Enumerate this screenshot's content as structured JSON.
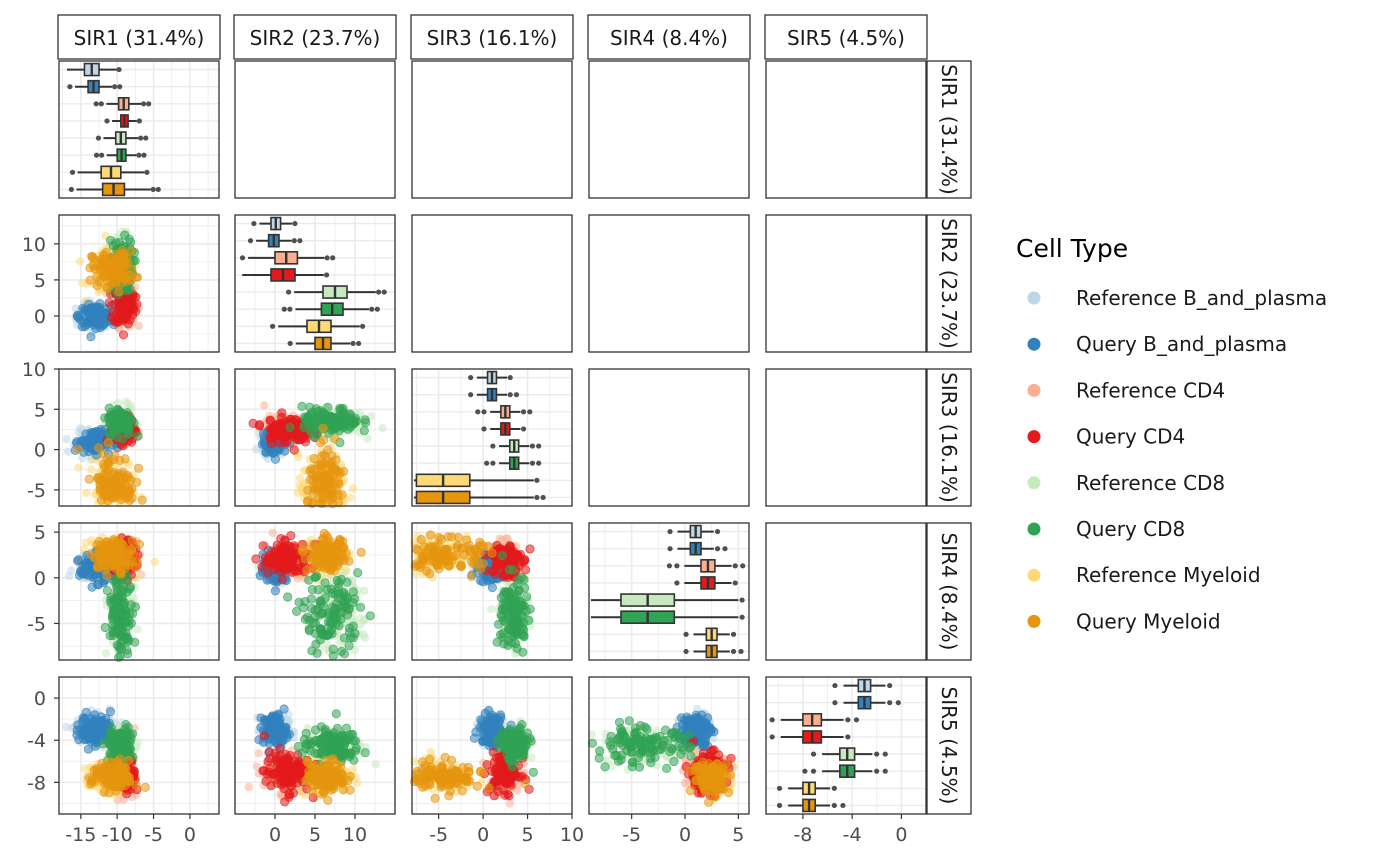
{
  "chart_data": {
    "type": "scatter",
    "layout": "pairs-matrix",
    "panels": [
      "SIR1 (31.4%)",
      "SIR2 (23.7%)",
      "SIR3 (16.1%)",
      "SIR4 (8.4%)",
      "SIR5 (4.5%)"
    ],
    "x_ticks": [
      {
        "values": [
          -15,
          -10,
          -5,
          0
        ],
        "labels": [
          "-15",
          "-10",
          "-5",
          "0"
        ]
      },
      {
        "values": [
          0,
          5,
          10
        ],
        "labels": [
          "0",
          "5",
          "10"
        ]
      },
      {
        "values": [
          -5,
          0,
          5,
          10
        ],
        "labels": [
          "-5",
          "0",
          "5",
          "10"
        ]
      },
      {
        "values": [
          -5,
          0,
          5
        ],
        "labels": [
          "-5",
          "0",
          "5"
        ]
      },
      {
        "values": [
          -8,
          -4,
          0
        ],
        "labels": [
          "-8",
          "-4",
          "0"
        ]
      }
    ],
    "y_ticks": [
      {
        "values": [],
        "labels": []
      },
      {
        "values": [
          0,
          5,
          10
        ],
        "labels": [
          "0",
          "5",
          "10"
        ]
      },
      {
        "values": [
          -5,
          0,
          5,
          10
        ],
        "labels": [
          "-5",
          "0",
          "5",
          "10"
        ]
      },
      {
        "values": [
          -5,
          0,
          5
        ],
        "labels": [
          "-5",
          "0",
          "5"
        ]
      },
      {
        "values": [
          -8,
          -4,
          0
        ],
        "labels": [
          "-8",
          "-4",
          "0"
        ]
      }
    ],
    "xlim": [
      [
        -18,
        4
      ],
      [
        -5,
        15
      ],
      [
        -8,
        10
      ],
      [
        -9,
        6
      ],
      [
        -11,
        2
      ]
    ],
    "ylim": [
      [
        -1,
        1
      ],
      [
        -5,
        14
      ],
      [
        -7,
        10
      ],
      [
        -9,
        6
      ],
      [
        -11,
        2
      ]
    ],
    "legend": {
      "title": "Cell Type",
      "position": "right",
      "entries": [
        {
          "name": "Reference B_and_plasma",
          "color": "#bdd7e7"
        },
        {
          "name": "Query B_and_plasma",
          "color": "#3182bd"
        },
        {
          "name": "Reference CD4",
          "color": "#fcae91"
        },
        {
          "name": "Query CD4",
          "color": "#e31a1c"
        },
        {
          "name": "Reference CD8",
          "color": "#c7e9c0"
        },
        {
          "name": "Query CD8",
          "color": "#31a354"
        },
        {
          "name": "Reference Myeloid",
          "color": "#fed976"
        },
        {
          "name": "Query Myeloid",
          "color": "#e6950e"
        }
      ]
    },
    "distributions": {
      "dims_order": [
        "SIR1",
        "SIR2",
        "SIR3",
        "SIR4",
        "SIR5"
      ],
      "mean": [
        [
          -13,
          -13,
          -9,
          -9,
          -9.5,
          -9.5,
          -11,
          -10.5
        ],
        [
          0,
          0,
          1.5,
          1.5,
          7.5,
          7,
          6,
          6.5
        ],
        [
          1,
          1,
          2.5,
          2.5,
          3.5,
          3.5,
          -5,
          -4.5
        ],
        [
          1,
          1,
          2,
          2,
          -4,
          -4,
          2.5,
          2.5
        ],
        [
          -3,
          -3,
          -7,
          -7,
          -4.5,
          -4.5,
          -7.5,
          -7.5
        ]
      ],
      "sd": [
        [
          1.1,
          0.9,
          0.6,
          0.6,
          0.7,
          0.7,
          1.2,
          1.2
        ],
        [
          0.7,
          0.6,
          1.2,
          1.2,
          1.5,
          1.5,
          1.3,
          1.0
        ],
        [
          0.6,
          0.6,
          0.7,
          0.7,
          0.7,
          0.7,
          1.8,
          1.8
        ],
        [
          0.6,
          0.6,
          0.8,
          0.8,
          1.8,
          1.8,
          0.7,
          0.7
        ],
        [
          0.6,
          0.6,
          0.8,
          0.8,
          0.7,
          0.7,
          0.6,
          0.6
        ]
      ],
      "iqr": [
        [
          [
            -14.5,
            -12.5
          ],
          [
            -14,
            -12.5
          ],
          [
            -9.8,
            -8.4
          ],
          [
            -9.5,
            -8.5
          ],
          [
            -10.2,
            -8.8
          ],
          [
            -10,
            -8.8
          ],
          [
            -12.2,
            -9.5
          ],
          [
            -12,
            -9
          ]
        ],
        [
          [
            -0.5,
            0.7
          ],
          [
            -0.8,
            0.5
          ],
          [
            0,
            2.8
          ],
          [
            -0.5,
            2.5
          ],
          [
            6,
            9
          ],
          [
            5.8,
            8.5
          ],
          [
            4,
            7
          ],
          [
            5,
            7
          ]
        ],
        [
          [
            0.5,
            1.5
          ],
          [
            0.5,
            1.5
          ],
          [
            2,
            3
          ],
          [
            2,
            3
          ],
          [
            3,
            4
          ],
          [
            3,
            4
          ],
          [
            -7.5,
            -1.5
          ],
          [
            -7.5,
            -1.5
          ]
        ],
        [
          [
            0.5,
            1.5
          ],
          [
            0.5,
            1.5
          ],
          [
            1.5,
            2.8
          ],
          [
            1.5,
            2.8
          ],
          [
            -6,
            -1
          ],
          [
            -6,
            -1
          ],
          [
            2,
            3
          ],
          [
            2,
            3
          ]
        ],
        [
          [
            -3.5,
            -2.5
          ],
          [
            -3.5,
            -2.5
          ],
          [
            -8,
            -6.5
          ],
          [
            -8,
            -6.5
          ],
          [
            -5,
            -3.8
          ],
          [
            -5,
            -3.8
          ],
          [
            -8,
            -7
          ],
          [
            -8,
            -7
          ]
        ]
      ]
    },
    "points_per_group": 120
  }
}
